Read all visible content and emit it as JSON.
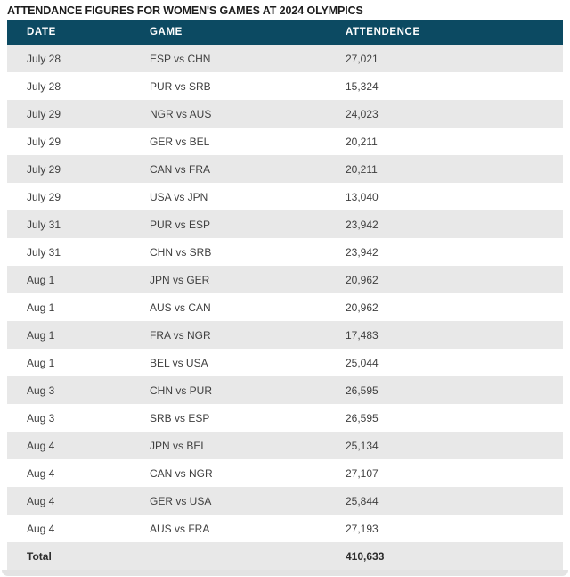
{
  "title": "ATTENDANCE FIGURES FOR WOMEN'S GAMES AT 2024 OLYMPICS",
  "chart_data": {
    "type": "table",
    "columns": [
      "DATE",
      "GAME",
      "ATTENDENCE"
    ],
    "rows": [
      [
        "July 28",
        "ESP vs CHN",
        "27,021"
      ],
      [
        "July 28",
        "PUR vs SRB",
        "15,324"
      ],
      [
        "July 29",
        "NGR vs AUS",
        "24,023"
      ],
      [
        "July 29",
        "GER vs BEL",
        "20,211"
      ],
      [
        "July 29",
        "CAN vs FRA",
        "20,211"
      ],
      [
        "July 29",
        "USA vs JPN",
        "13,040"
      ],
      [
        "July 31",
        "PUR vs ESP",
        "23,942"
      ],
      [
        "July 31",
        "CHN vs SRB",
        "23,942"
      ],
      [
        "Aug 1",
        "JPN vs GER",
        "20,962"
      ],
      [
        "Aug 1",
        "AUS vs CAN",
        "20,962"
      ],
      [
        "Aug 1",
        "FRA vs NGR",
        "17,483"
      ],
      [
        "Aug 1",
        "BEL vs USA",
        "25,044"
      ],
      [
        "Aug 3",
        "CHN vs PUR",
        "26,595"
      ],
      [
        "Aug 3",
        "SRB vs ESP",
        "26,595"
      ],
      [
        "Aug 4",
        "JPN vs BEL",
        "25,134"
      ],
      [
        "Aug 4",
        "CAN vs NGR",
        "27,107"
      ],
      [
        "Aug 4",
        "GER vs USA",
        "25,844"
      ],
      [
        "Aug 4",
        "AUS vs FRA",
        "27,193"
      ]
    ],
    "total": {
      "label": "Total",
      "value": "410,633"
    }
  },
  "colors": {
    "header_bg": "#0c4a62",
    "header_text": "#ffffff",
    "row_bg": "#ffffff",
    "row_alt_bg": "#e8e8e8",
    "cell_text": "#3f3f3f",
    "title_text": "#1d1d1d",
    "total_text": "#2c2c2c",
    "bottom_strip": "#e3e3e3"
  }
}
